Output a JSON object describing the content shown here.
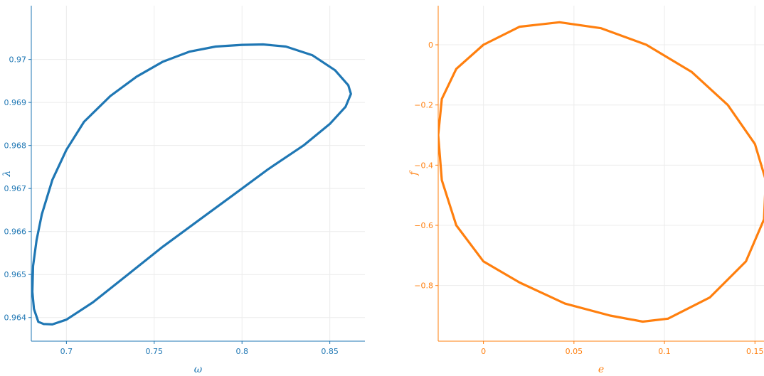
{
  "chart_data": [
    {
      "type": "line",
      "color": "#1f77b4",
      "xlabel": "ω",
      "ylabel": "λ",
      "xlim": [
        0.68,
        0.87
      ],
      "ylim": [
        0.96345,
        0.97125
      ],
      "xticks": [
        0.7,
        0.75,
        0.8,
        0.85
      ],
      "xtick_labels": [
        "0.7",
        "0.75",
        "0.8",
        "0.85"
      ],
      "yticks": [
        0.964,
        0.965,
        0.966,
        0.967,
        0.968,
        0.969,
        0.97
      ],
      "ytick_labels": [
        "0.964",
        "0.965",
        "0.966",
        "0.967",
        "0.968",
        "0.969",
        "0.97"
      ],
      "grid": true,
      "series": [
        {
          "x": [
            0.687,
            0.684,
            0.6815,
            0.6806,
            0.681,
            0.683,
            0.686,
            0.692,
            0.7,
            0.71,
            0.725,
            0.74,
            0.755,
            0.77,
            0.785,
            0.8,
            0.812,
            0.825,
            0.84,
            0.853,
            0.8605,
            0.862,
            0.859,
            0.85,
            0.835,
            0.815,
            0.795,
            0.775,
            0.755,
            0.735,
            0.715,
            0.7,
            0.692,
            0.687
          ],
          "y": [
            0.96385,
            0.9639,
            0.9642,
            0.9646,
            0.9652,
            0.9658,
            0.9664,
            0.9672,
            0.9679,
            0.96855,
            0.96915,
            0.9696,
            0.96995,
            0.97018,
            0.9703,
            0.97034,
            0.97035,
            0.9703,
            0.9701,
            0.96975,
            0.9694,
            0.9692,
            0.9689,
            0.9685,
            0.968,
            0.96745,
            0.96685,
            0.96625,
            0.96565,
            0.965,
            0.96435,
            0.96395,
            0.96384,
            0.96385
          ]
        }
      ]
    },
    {
      "type": "line",
      "color": "#ff7f0e",
      "xlabel": "e",
      "ylabel": "f",
      "xlim": [
        -0.025,
        0.155
      ],
      "ylim": [
        -0.985,
        0.13
      ],
      "xticks": [
        0,
        0.05,
        0.1,
        0.15
      ],
      "xtick_labels": [
        "0",
        "0.05",
        "0.1",
        "0.15"
      ],
      "yticks": [
        0,
        -0.2,
        -0.4,
        -0.6,
        -0.8
      ],
      "ytick_labels": [
        "0",
        "−0.2",
        "−0.4",
        "−0.6",
        "−0.8"
      ],
      "grid": true,
      "series": [
        {
          "x": [
            0.0,
            0.02,
            0.042,
            0.065,
            0.09,
            0.115,
            0.135,
            0.15,
            0.156,
            0.155,
            0.145,
            0.125,
            0.102,
            0.088,
            0.07,
            0.045,
            0.02,
            0.0,
            -0.015,
            -0.023,
            -0.025,
            -0.023,
            -0.015,
            0.0
          ],
          "y": [
            0.0,
            0.06,
            0.075,
            0.055,
            0.0,
            -0.09,
            -0.2,
            -0.33,
            -0.45,
            -0.58,
            -0.72,
            -0.84,
            -0.91,
            -0.92,
            -0.9,
            -0.86,
            -0.79,
            -0.72,
            -0.6,
            -0.45,
            -0.3,
            -0.18,
            -0.08,
            0.0
          ]
        }
      ]
    }
  ]
}
